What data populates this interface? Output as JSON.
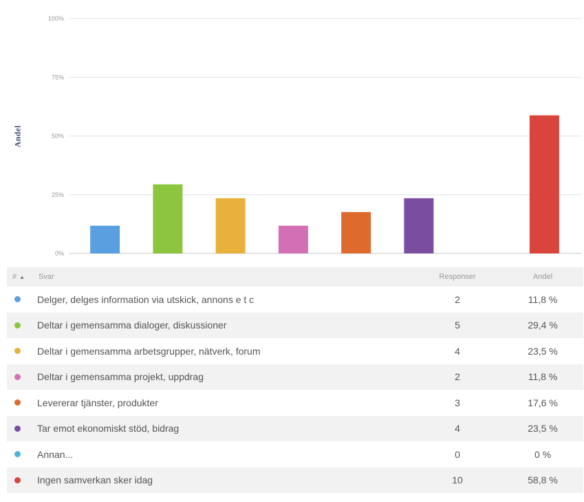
{
  "chart_data": {
    "type": "bar",
    "ylabel": "Andel",
    "yticks": [
      "0%",
      "25%",
      "50%",
      "75%",
      "100%"
    ],
    "ylim": [
      0,
      100
    ],
    "grid": true,
    "categories": [
      "Delger, delges information via utskick, annons e t c",
      "Deltar i gemensamma dialoger, diskussioner",
      "Deltar i gemensamma arbetsgrupper, nätverk, forum",
      "Deltar i gemensamma projekt, uppdrag",
      "Levererar tjänster, produkter",
      "Tar emot ekonomiskt stöd, bidrag",
      "Annan...",
      "Ingen samverkan sker idag"
    ],
    "values": [
      11.8,
      29.4,
      23.5,
      11.8,
      17.6,
      23.5,
      0,
      58.8
    ],
    "colors": [
      "#5aa0e0",
      "#8cc63e",
      "#e8b13c",
      "#d36fb5",
      "#de6a2e",
      "#7b4da1",
      "#4fb3d9",
      "#d9443c"
    ]
  },
  "table": {
    "header": {
      "num": "#",
      "answer": "Svar",
      "responses": "Responser",
      "share": "Andel"
    },
    "rows": [
      {
        "answer": "Delger, delges information via utskick, annons e t c",
        "responses": "2",
        "share": "11,8 %",
        "color": "#5aa0e0"
      },
      {
        "answer": "Deltar i gemensamma dialoger, diskussioner",
        "responses": "5",
        "share": "29,4 %",
        "color": "#8cc63e"
      },
      {
        "answer": "Deltar i gemensamma arbetsgrupper, nätverk, forum",
        "responses": "4",
        "share": "23,5 %",
        "color": "#e8b13c"
      },
      {
        "answer": "Deltar i gemensamma projekt, uppdrag",
        "responses": "2",
        "share": "11,8 %",
        "color": "#d36fb5"
      },
      {
        "answer": "Levererar tjänster, produkter",
        "responses": "3",
        "share": "17,6 %",
        "color": "#de6a2e"
      },
      {
        "answer": "Tar emot ekonomiskt stöd, bidrag",
        "responses": "4",
        "share": "23,5 %",
        "color": "#7b4da1"
      },
      {
        "answer": "Annan...",
        "responses": "0",
        "share": "0 %",
        "color": "#4fb3d9"
      },
      {
        "answer": "Ingen samverkan sker idag",
        "responses": "10",
        "share": "58,8 %",
        "color": "#d9443c"
      }
    ]
  }
}
